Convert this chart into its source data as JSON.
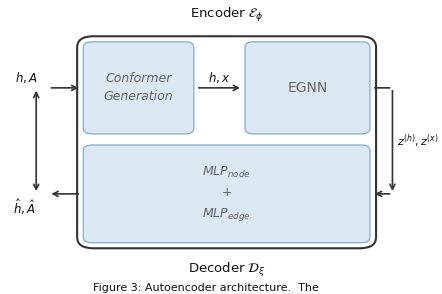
{
  "fig_width": 4.42,
  "fig_height": 2.94,
  "dpi": 100,
  "bg_color": "#ffffff",
  "box_fill": "#dce9f5",
  "box_edge": "#8ab4d0",
  "outer_box_edge": "#333333",
  "encoder_label": "Encoder $\\mathcal{E}_\\phi$",
  "decoder_label": "Decoder $\\mathcal{D}_\\xi$",
  "conformer_label": "Conformer\nGeneration",
  "egnn_label": "EGNN",
  "mlp_label": "$MLP_{node}$\n+\n$MLP_{edge}$",
  "input_label": "$h, A$",
  "output_label": "$\\hat{h}, \\hat{A}$",
  "middle_label": "$h, x$",
  "z_label": "$z^{(h)}, z^{(x)}$",
  "caption": "Figure 3: Autoencoder architecture.  The"
}
